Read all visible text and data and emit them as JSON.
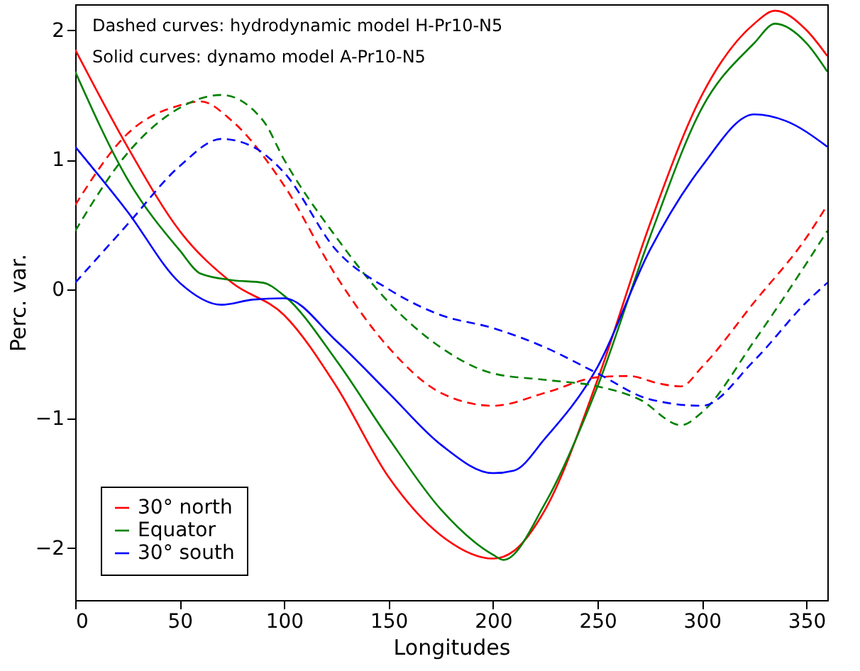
{
  "chart_data": {
    "type": "line",
    "xlabel": "Longitudes",
    "ylabel": "Perc. var.",
    "xlim": [
      0,
      360
    ],
    "ylim": [
      -2.4,
      2.2
    ],
    "xticks": [
      0,
      50,
      100,
      150,
      200,
      250,
      300,
      350
    ],
    "yticks": [
      -2,
      -1,
      0,
      1,
      2
    ],
    "grid": false,
    "legend": "bottom left",
    "marker": "none",
    "annotations": [
      "Dashed curves: hydrodynamic model H-Pr10-N5",
      "Solid curves: dynamo model A-Pr10-N5"
    ],
    "series": [
      {
        "name": "30° north",
        "color": "#ff0000",
        "line_style": "solid",
        "x": [
          0,
          25,
          50,
          75,
          100,
          125,
          150,
          175,
          200,
          210,
          225,
          250,
          275,
          300,
          325,
          335,
          350,
          360
        ],
        "values": [
          1.85,
          1.1,
          0.45,
          0.05,
          -0.2,
          -0.75,
          -1.45,
          -1.9,
          -2.08,
          -2.02,
          -1.7,
          -0.7,
          0.5,
          1.5,
          2.05,
          2.15,
          2.0,
          1.8
        ]
      },
      {
        "name": "Equator",
        "color": "#008000",
        "line_style": "solid",
        "x": [
          0,
          25,
          50,
          60,
          75,
          90,
          100,
          125,
          150,
          175,
          200,
          205,
          225,
          250,
          275,
          300,
          325,
          335,
          350,
          360
        ],
        "values": [
          1.68,
          0.85,
          0.3,
          0.12,
          0.07,
          0.05,
          -0.05,
          -0.55,
          -1.15,
          -1.7,
          -2.05,
          -2.09,
          -1.65,
          -0.75,
          0.4,
          1.4,
          1.9,
          2.05,
          1.9,
          1.68
        ]
      },
      {
        "name": "30° south",
        "color": "#0000ff",
        "line_style": "solid",
        "x": [
          0,
          25,
          50,
          70,
          85,
          100,
          125,
          150,
          175,
          200,
          210,
          225,
          250,
          275,
          300,
          325,
          340,
          360
        ],
        "values": [
          1.1,
          0.6,
          0.05,
          -0.12,
          -0.08,
          -0.07,
          -0.4,
          -0.8,
          -1.2,
          -1.42,
          -1.4,
          -1.15,
          -0.6,
          0.3,
          0.95,
          1.35,
          1.3,
          1.1
        ]
      },
      {
        "color": "#ff0000",
        "line_style": "dashed",
        "x": [
          0,
          25,
          50,
          60,
          75,
          100,
          125,
          150,
          175,
          200,
          225,
          250,
          265,
          280,
          290,
          300,
          325,
          350,
          360
        ],
        "values": [
          0.65,
          1.2,
          1.42,
          1.45,
          1.3,
          0.8,
          0.1,
          -0.45,
          -0.8,
          -0.9,
          -0.8,
          -0.68,
          -0.67,
          -0.73,
          -0.75,
          -0.6,
          -0.1,
          0.4,
          0.65
        ]
      },
      {
        "color": "#008000",
        "line_style": "dashed",
        "x": [
          0,
          25,
          50,
          70,
          90,
          100,
          125,
          150,
          175,
          200,
          225,
          250,
          270,
          290,
          300,
          325,
          350,
          360
        ],
        "values": [
          0.45,
          1.05,
          1.4,
          1.5,
          1.3,
          1.0,
          0.4,
          -0.1,
          -0.45,
          -0.65,
          -0.7,
          -0.75,
          -0.85,
          -1.05,
          -0.95,
          -0.4,
          0.2,
          0.45
        ]
      },
      {
        "color": "#0000ff",
        "line_style": "dashed",
        "x": [
          0,
          25,
          50,
          70,
          85,
          100,
          125,
          150,
          175,
          200,
          225,
          250,
          275,
          300,
          325,
          350,
          360
        ],
        "values": [
          0.05,
          0.5,
          0.95,
          1.16,
          1.1,
          0.9,
          0.3,
          0.0,
          -0.2,
          -0.3,
          -0.45,
          -0.65,
          -0.85,
          -0.9,
          -0.55,
          -0.1,
          0.05
        ]
      }
    ]
  }
}
